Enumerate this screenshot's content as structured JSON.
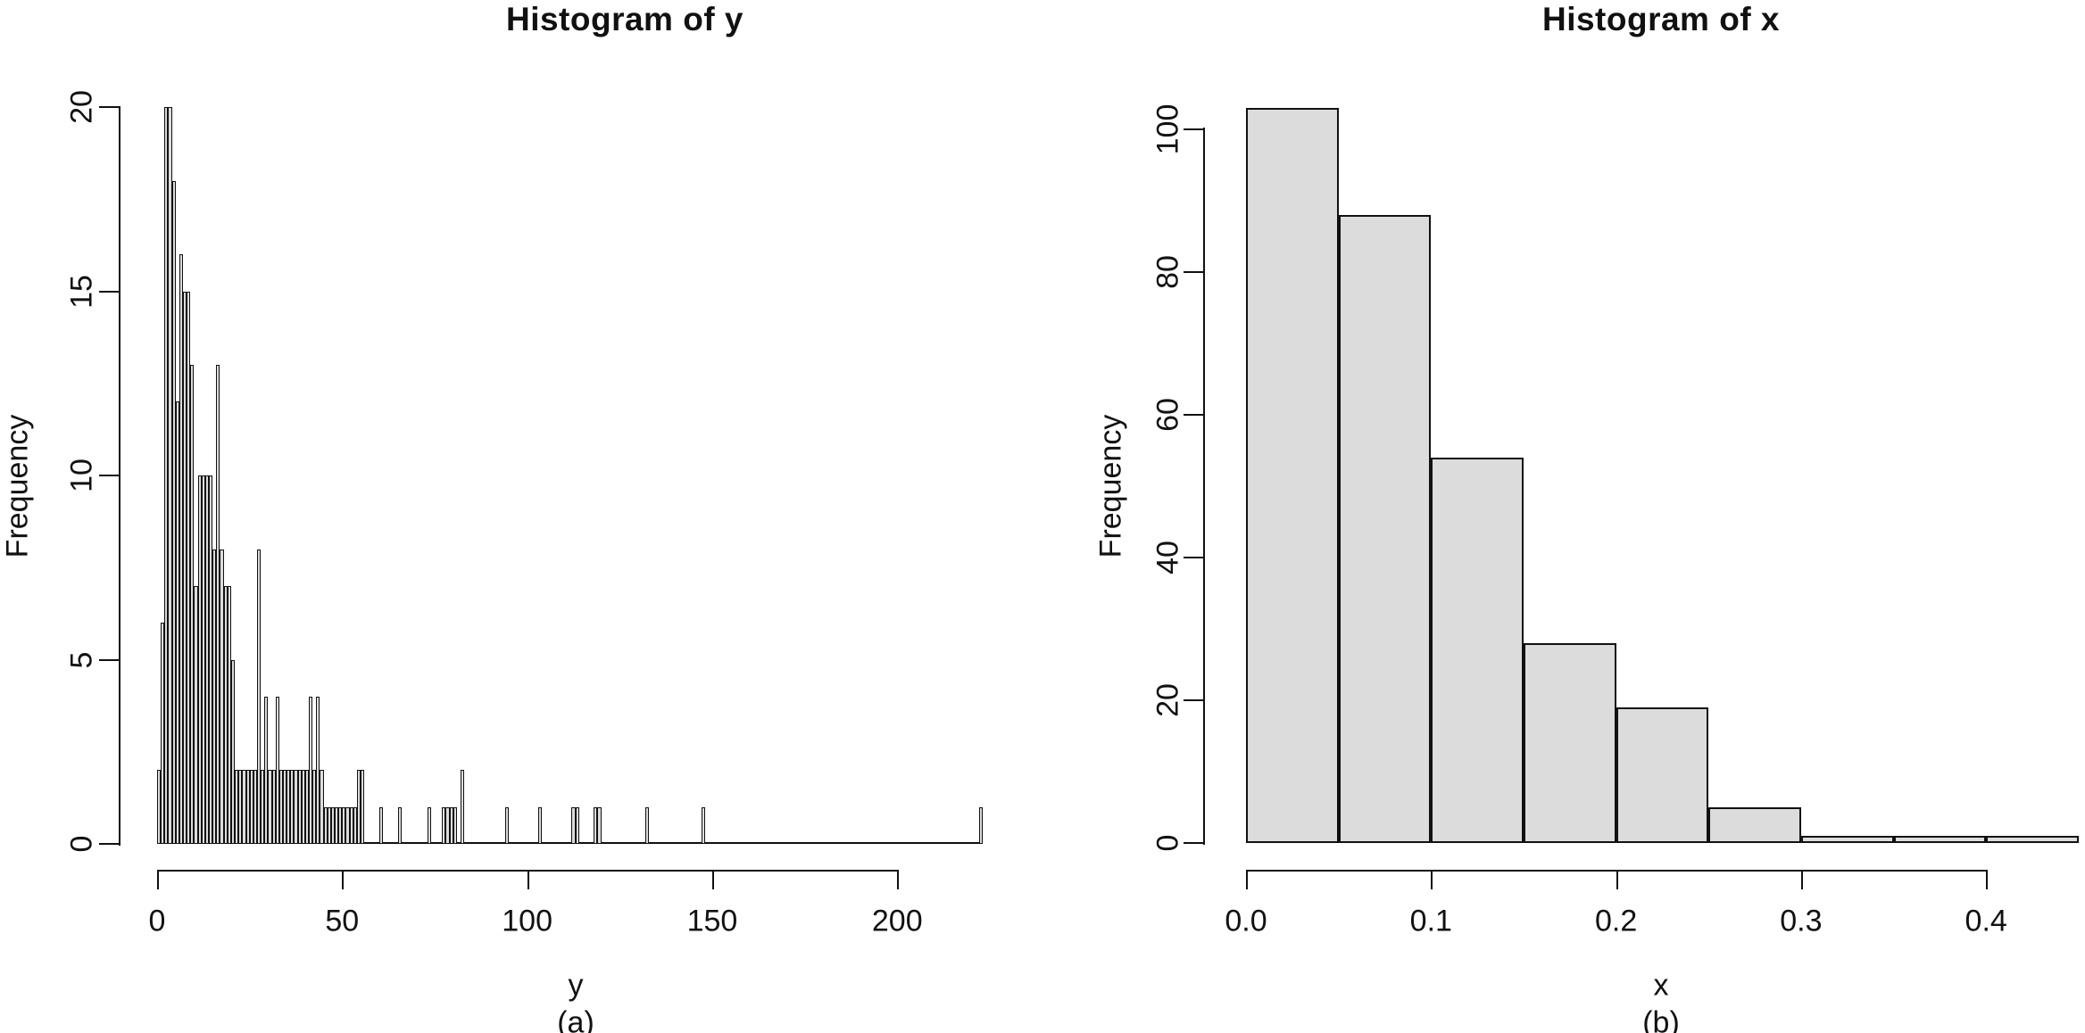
{
  "figure": {
    "background": "#ffffff",
    "bar_fill": "#dcdcdc",
    "bar_border": "#111111",
    "text_color": "#111111"
  },
  "chart_data": [
    {
      "type": "bar",
      "subtype": "histogram",
      "title": "Histogram of y",
      "xlabel": "y",
      "panel_label": "(a)",
      "ylabel": "Frequency",
      "bin_width": 1,
      "xlim": [
        0,
        223
      ],
      "ylim": [
        0,
        20
      ],
      "grid": "off",
      "legend": "none",
      "x_tick_values": [
        0,
        50,
        100,
        150,
        200
      ],
      "x_tick_labels": [
        "0",
        "50",
        "100",
        "150",
        "200"
      ],
      "y_tick_values": [
        0,
        5,
        10,
        15,
        20
      ],
      "y_tick_labels": [
        "0",
        "5",
        "10",
        "15",
        "20"
      ],
      "bins_note": "pairs of [bin_start, frequency]; all unlisted bins in [0,223) have frequency 0",
      "bins": [
        [
          0,
          2
        ],
        [
          1,
          6
        ],
        [
          2,
          20
        ],
        [
          3,
          20
        ],
        [
          4,
          18
        ],
        [
          5,
          12
        ],
        [
          6,
          16
        ],
        [
          7,
          15
        ],
        [
          8,
          15
        ],
        [
          9,
          13
        ],
        [
          10,
          7
        ],
        [
          11,
          10
        ],
        [
          12,
          10
        ],
        [
          13,
          10
        ],
        [
          14,
          10
        ],
        [
          15,
          8
        ],
        [
          16,
          13
        ],
        [
          17,
          8
        ],
        [
          18,
          7
        ],
        [
          19,
          7
        ],
        [
          20,
          5
        ],
        [
          21,
          2
        ],
        [
          22,
          2
        ],
        [
          23,
          2
        ],
        [
          24,
          2
        ],
        [
          25,
          2
        ],
        [
          26,
          2
        ],
        [
          27,
          8
        ],
        [
          28,
          2
        ],
        [
          29,
          4
        ],
        [
          30,
          2
        ],
        [
          31,
          2
        ],
        [
          32,
          4
        ],
        [
          33,
          2
        ],
        [
          34,
          2
        ],
        [
          35,
          2
        ],
        [
          36,
          2
        ],
        [
          37,
          2
        ],
        [
          38,
          2
        ],
        [
          39,
          2
        ],
        [
          40,
          2
        ],
        [
          41,
          4
        ],
        [
          42,
          2
        ],
        [
          43,
          4
        ],
        [
          44,
          2
        ],
        [
          45,
          1
        ],
        [
          46,
          1
        ],
        [
          47,
          1
        ],
        [
          48,
          1
        ],
        [
          49,
          1
        ],
        [
          50,
          1
        ],
        [
          51,
          1
        ],
        [
          52,
          1
        ],
        [
          53,
          1
        ],
        [
          54,
          2
        ],
        [
          55,
          2
        ],
        [
          60,
          1
        ],
        [
          65,
          1
        ],
        [
          73,
          1
        ],
        [
          77,
          1
        ],
        [
          78,
          1
        ],
        [
          79,
          1
        ],
        [
          80,
          1
        ],
        [
          82,
          2
        ],
        [
          94,
          1
        ],
        [
          103,
          1
        ],
        [
          112,
          1
        ],
        [
          113,
          1
        ],
        [
          118,
          1
        ],
        [
          119,
          1
        ],
        [
          132,
          1
        ],
        [
          147,
          1
        ],
        [
          222,
          1
        ]
      ]
    },
    {
      "type": "bar",
      "subtype": "histogram",
      "title": "Histogram of x",
      "xlabel": "x",
      "panel_label": "(b)",
      "ylabel": "Frequency",
      "bin_width": 0.05,
      "xlim": [
        0,
        0.45
      ],
      "ylim": [
        0,
        103
      ],
      "grid": "off",
      "legend": "none",
      "x_tick_values": [
        0.0,
        0.1,
        0.2,
        0.3,
        0.4
      ],
      "x_tick_labels": [
        "0.0",
        "0.1",
        "0.2",
        "0.3",
        "0.4"
      ],
      "y_tick_values": [
        0,
        20,
        40,
        60,
        80,
        100
      ],
      "y_tick_labels": [
        "0",
        "20",
        "40",
        "60",
        "80",
        "100"
      ],
      "bins_note": "pairs of [bin_start, frequency]",
      "bins": [
        [
          0.0,
          103
        ],
        [
          0.05,
          88
        ],
        [
          0.1,
          54
        ],
        [
          0.15,
          28
        ],
        [
          0.2,
          19
        ],
        [
          0.25,
          5
        ],
        [
          0.3,
          1
        ],
        [
          0.35,
          1
        ],
        [
          0.4,
          1
        ]
      ]
    }
  ]
}
